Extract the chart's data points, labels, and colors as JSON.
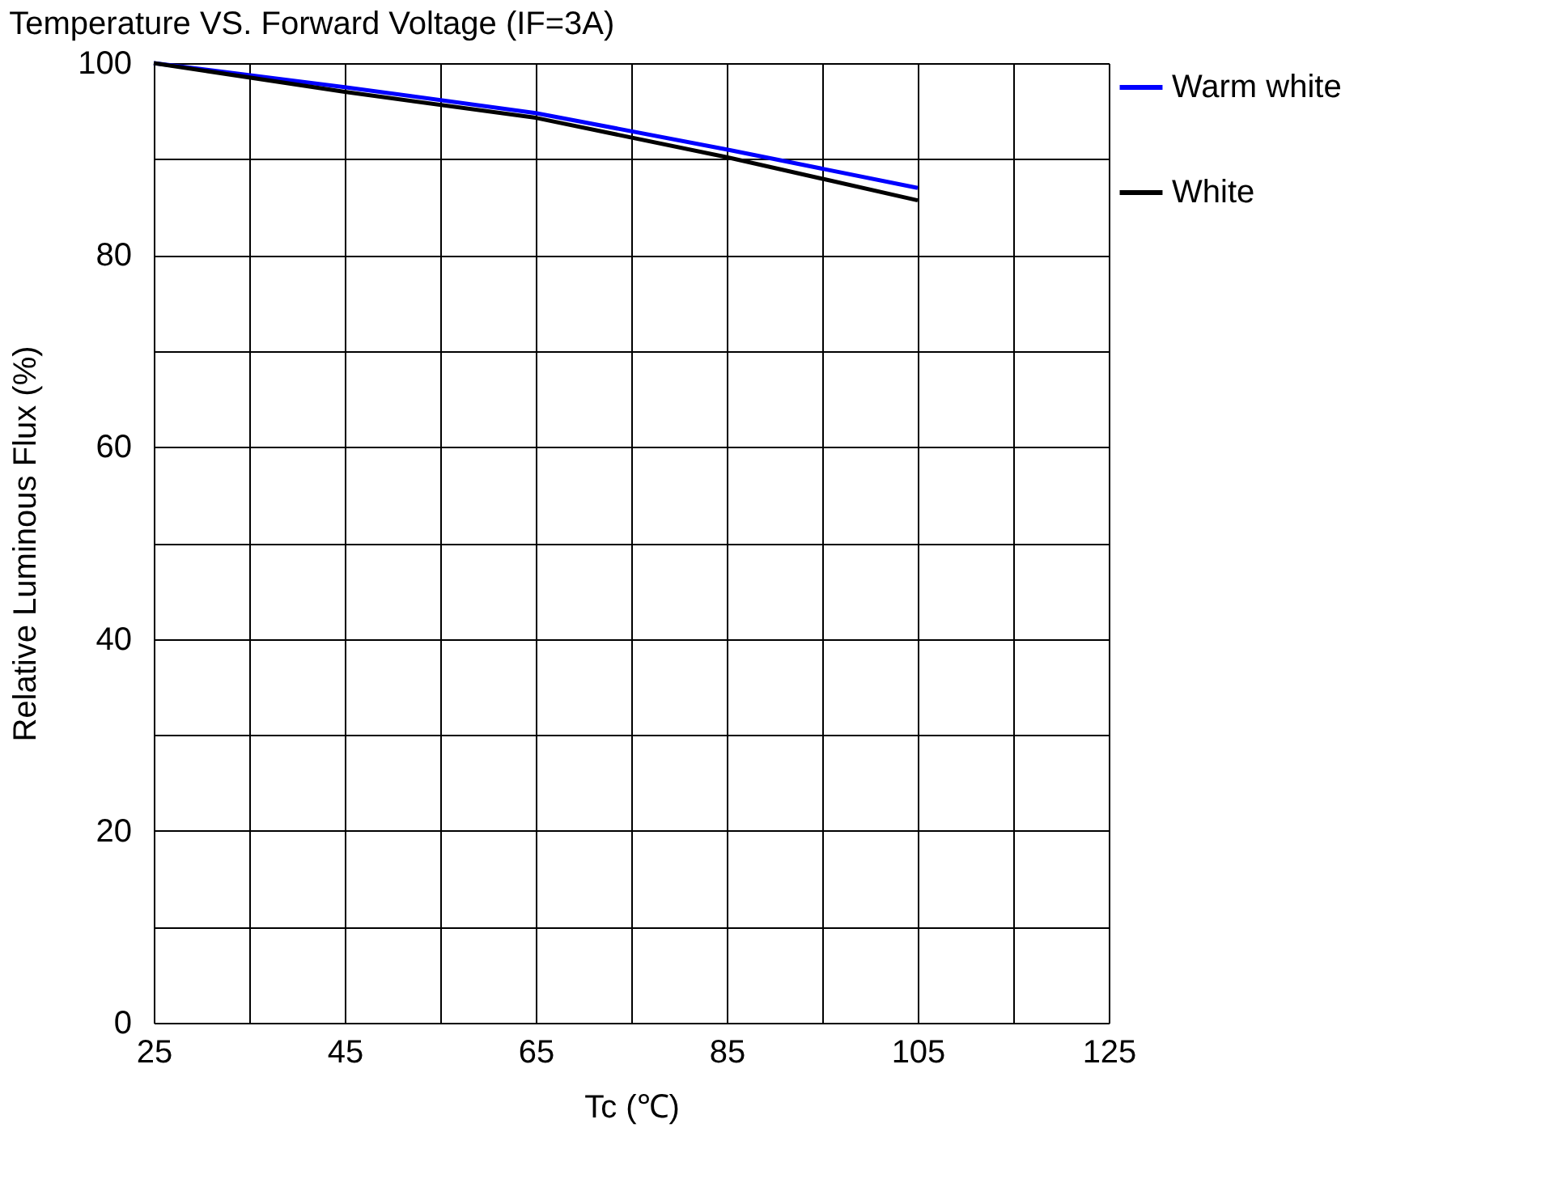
{
  "chart_data": {
    "type": "line",
    "title": "Temperature VS. Forward Voltage (IF=3A)",
    "xlabel": "Tc (℃)",
    "ylabel": "Relative  Luminous  Flux  (%)",
    "x": [
      25,
      45,
      65,
      85,
      105
    ],
    "series": [
      {
        "name": "Warm white",
        "color": "#0000ff",
        "values": [
          100,
          97.5,
          94.8,
          91,
          87
        ]
      },
      {
        "name": "White",
        "color": "#000000",
        "values": [
          100,
          97,
          94.3,
          90.2,
          85.7
        ]
      }
    ],
    "xlim": [
      25,
      125
    ],
    "ylim": [
      0,
      100
    ],
    "xticks": [
      25,
      {
        "value": 35,
        "label": null
      },
      45,
      {
        "value": 55,
        "label": null
      },
      65,
      {
        "value": 75,
        "label": null
      },
      85,
      {
        "value": 95,
        "label": null
      },
      105,
      {
        "value": 115,
        "label": null
      },
      125
    ],
    "yticks": [
      0,
      {
        "value": 10,
        "label": null
      },
      20,
      {
        "value": 30,
        "label": null
      },
      40,
      {
        "value": 50,
        "label": null
      },
      60,
      {
        "value": 70,
        "label": null
      },
      80,
      {
        "value": 90,
        "label": null
      },
      100
    ],
    "grid": true,
    "legend": "right",
    "marker": "none",
    "line_style": "solid"
  }
}
